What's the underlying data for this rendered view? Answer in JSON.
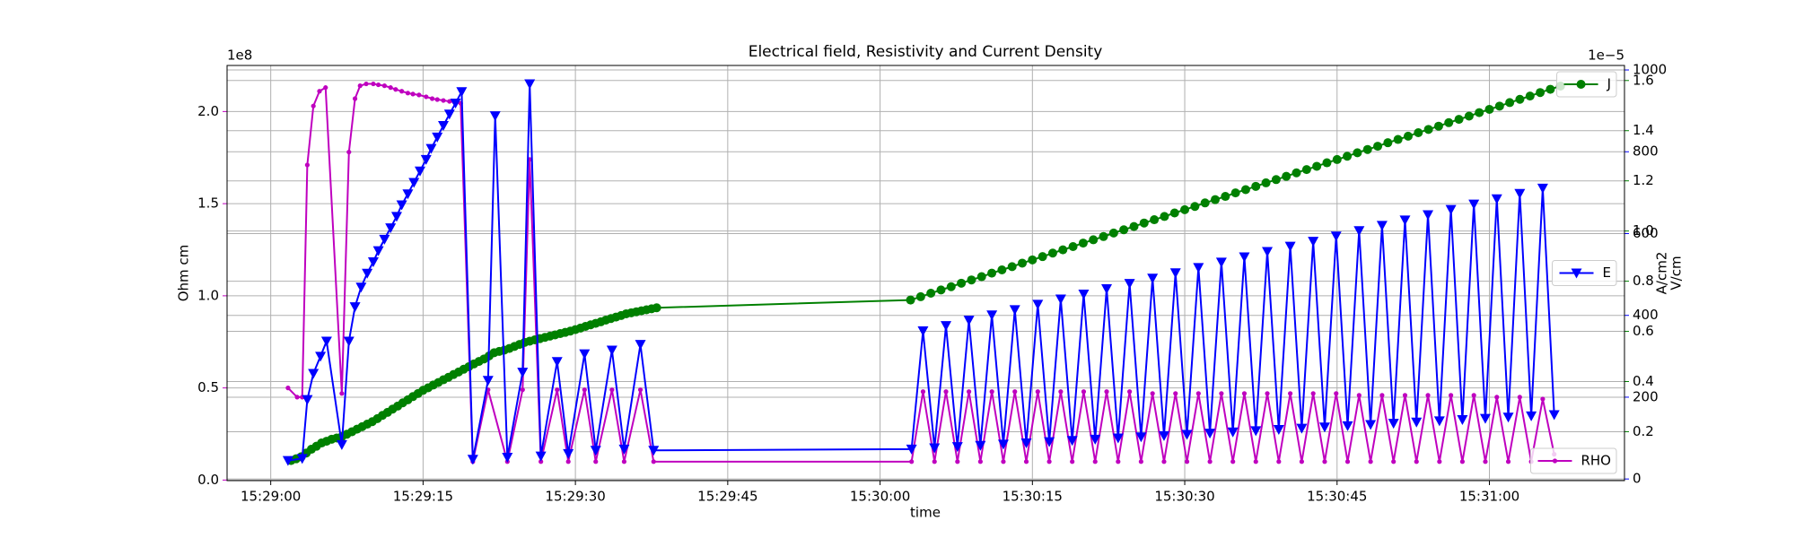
{
  "chart_data": {
    "type": "line",
    "title": "Electrical field, Resistivity and Current Density",
    "xlabel": "time",
    "ylabel": "Ohm cm",
    "y2label": "A/cm2",
    "y3label": "V/cm",
    "y_offset_text": "1e8",
    "y2_offset_text": "1e−5",
    "grid": true,
    "xlim": [
      -4.3,
      133.3
    ],
    "xticks": [
      {
        "value": 0,
        "label": "15:29:00"
      },
      {
        "value": 15,
        "label": "15:29:15"
      },
      {
        "value": 30,
        "label": "15:29:30"
      },
      {
        "value": 45,
        "label": "15:29:45"
      },
      {
        "value": 60,
        "label": "15:30:00"
      },
      {
        "value": 75,
        "label": "15:30:15"
      },
      {
        "value": 90,
        "label": "15:30:30"
      },
      {
        "value": 105,
        "label": "15:30:45"
      },
      {
        "value": 120,
        "label": "15:31:00"
      }
    ],
    "ylim": [
      -0.003,
      2.25
    ],
    "yticks": [
      {
        "value": 0,
        "label": "0.0"
      },
      0.5,
      {
        "value": 1,
        "label": "1.0"
      },
      1.5,
      {
        "value": 2,
        "label": "2.0"
      }
    ],
    "y2lim": [
      0.005,
      1.66
    ],
    "y2ticks": [
      0.2,
      0.4,
      0.6,
      0.8,
      {
        "value": 1,
        "label": "1.0"
      },
      1.2,
      1.4,
      1.6
    ],
    "y3lim": [
      -4,
      1011
    ],
    "y3ticks": [
      0,
      200,
      400,
      600,
      800,
      1000
    ],
    "series": [
      {
        "name": "RHO",
        "color": "#bf00bf",
        "marker": "point",
        "axis": "y",
        "legend": "lower right",
        "x": [
          1.7,
          2.6,
          3.1,
          3.6,
          4.2,
          4.8,
          5.4,
          7.0,
          7.7,
          8.3,
          8.8,
          9.4,
          10.1,
          10.6,
          11.2,
          11.8,
          12.3,
          12.9,
          13.5,
          14.0,
          14.6,
          15.3,
          15.9,
          16.4,
          17.0,
          17.6,
          18.1,
          18.7,
          19.9,
          21.4,
          23.3,
          24.8,
          25.5,
          26.6,
          28.2,
          29.3,
          30.9,
          32.0,
          33.6,
          34.8,
          36.4,
          37.7,
          63.1,
          64.23,
          65.36,
          66.49,
          67.62,
          68.75,
          69.88,
          71.01,
          72.14,
          73.27,
          74.4,
          75.53,
          76.66,
          77.79,
          78.92,
          80.05,
          81.18,
          82.31,
          83.44,
          84.57,
          85.7,
          86.83,
          87.96,
          89.09,
          90.22,
          91.35,
          92.48,
          93.61,
          94.74,
          95.87,
          97.0,
          98.13,
          99.26,
          100.39,
          101.52,
          102.65,
          103.78,
          104.91,
          106.04,
          107.17,
          108.3,
          109.43,
          110.56,
          111.69,
          112.82,
          113.95,
          115.08,
          116.21,
          117.34,
          118.47,
          119.6,
          120.73,
          121.86,
          122.99,
          124.12,
          125.25,
          126.38
        ],
        "values": [
          0.5,
          0.45,
          0.45,
          1.71,
          2.03,
          2.11,
          2.13,
          0.47,
          1.78,
          2.07,
          2.14,
          2.15,
          2.15,
          2.145,
          2.14,
          2.13,
          2.12,
          2.11,
          2.1,
          2.095,
          2.09,
          2.08,
          2.07,
          2.065,
          2.06,
          2.055,
          2.05,
          2.045,
          0.1,
          0.49,
          0.1,
          0.49,
          1.74,
          0.1,
          0.49,
          0.1,
          0.49,
          0.1,
          0.49,
          0.1,
          0.49,
          0.1,
          0.1,
          0.48,
          0.1,
          0.48,
          0.1,
          0.48,
          0.1,
          0.48,
          0.1,
          0.48,
          0.1,
          0.48,
          0.1,
          0.48,
          0.1,
          0.48,
          0.1,
          0.48,
          0.1,
          0.48,
          0.1,
          0.47,
          0.1,
          0.47,
          0.1,
          0.47,
          0.1,
          0.47,
          0.1,
          0.47,
          0.1,
          0.47,
          0.1,
          0.47,
          0.1,
          0.47,
          0.1,
          0.47,
          0.1,
          0.46,
          0.1,
          0.46,
          0.1,
          0.46,
          0.1,
          0.46,
          0.1,
          0.46,
          0.1,
          0.46,
          0.1,
          0.45,
          0.1,
          0.45,
          0.1,
          0.44,
          0.14
        ]
      },
      {
        "name": "J",
        "color": "#008000",
        "marker": "circle",
        "axis": "y2",
        "legend": "upper right",
        "x": [
          2,
          2.5,
          3,
          3.5,
          4,
          4.5,
          5,
          5.5,
          6,
          6.5,
          7,
          7.5,
          8,
          8.5,
          9,
          9.5,
          10,
          10.5,
          11,
          11.5,
          12,
          12.5,
          13,
          13.5,
          14,
          14.5,
          15,
          15.5,
          16,
          16.5,
          17,
          17.5,
          18,
          18.5,
          19,
          19.5,
          20,
          20.5,
          21,
          21.5,
          22,
          22.5,
          23,
          23.5,
          24,
          24.5,
          25,
          25.5,
          26,
          26.5,
          27,
          27.5,
          28,
          28.5,
          29,
          29.5,
          30,
          30.5,
          31,
          31.5,
          32,
          32.5,
          33,
          33.5,
          34,
          34.5,
          35,
          35.5,
          36,
          36.5,
          37,
          37.5,
          38,
          63,
          64,
          65,
          66,
          67,
          68,
          69,
          70,
          71,
          72,
          73,
          74,
          75,
          76,
          77,
          78,
          79,
          80,
          81,
          82,
          83,
          84,
          85,
          86,
          87,
          88,
          89,
          90,
          91,
          92,
          93,
          94,
          95,
          96,
          97,
          98,
          99,
          100,
          101,
          102,
          103,
          104,
          105,
          106,
          107,
          108,
          109,
          110,
          111,
          112,
          113,
          114,
          115,
          116,
          117,
          118,
          119,
          120,
          121,
          122,
          123,
          124,
          125,
          126,
          127
        ],
        "values": [
          0.085,
          0.092,
          0.1,
          0.115,
          0.13,
          0.142,
          0.155,
          0.162,
          0.17,
          0.175,
          0.18,
          0.19,
          0.2,
          0.21,
          0.22,
          0.23,
          0.24,
          0.252,
          0.265,
          0.277,
          0.29,
          0.302,
          0.315,
          0.327,
          0.34,
          0.352,
          0.365,
          0.375,
          0.386,
          0.396,
          0.407,
          0.417,
          0.428,
          0.438,
          0.449,
          0.459,
          0.47,
          0.48,
          0.49,
          0.502,
          0.515,
          0.52,
          0.525,
          0.532,
          0.54,
          0.548,
          0.556,
          0.561,
          0.566,
          0.571,
          0.576,
          0.581,
          0.586,
          0.591,
          0.596,
          0.601,
          0.607,
          0.613,
          0.62,
          0.626,
          0.632,
          0.638,
          0.645,
          0.651,
          0.657,
          0.663,
          0.67,
          0.674,
          0.678,
          0.682,
          0.686,
          0.69,
          0.694,
          0.725,
          0.738,
          0.752,
          0.765,
          0.778,
          0.792,
          0.805,
          0.818,
          0.832,
          0.845,
          0.858,
          0.872,
          0.885,
          0.898,
          0.912,
          0.925,
          0.938,
          0.952,
          0.965,
          0.978,
          0.992,
          1.005,
          1.018,
          1.032,
          1.045,
          1.058,
          1.072,
          1.085,
          1.098,
          1.112,
          1.125,
          1.138,
          1.152,
          1.165,
          1.178,
          1.192,
          1.205,
          1.218,
          1.232,
          1.245,
          1.258,
          1.272,
          1.285,
          1.298,
          1.312,
          1.325,
          1.338,
          1.352,
          1.365,
          1.378,
          1.392,
          1.405,
          1.418,
          1.432,
          1.445,
          1.458,
          1.472,
          1.485,
          1.498,
          1.512,
          1.525,
          1.538,
          1.552,
          1.565,
          1.578
        ]
      },
      {
        "name": "E",
        "color": "#0000ff",
        "marker": "triangle_down",
        "axis": "y3",
        "legend": "center right",
        "x": [
          1.7,
          3.1,
          3.6,
          4.2,
          4.9,
          5.5,
          7.0,
          7.7,
          8.3,
          8.9,
          9.5,
          10.1,
          10.6,
          11.2,
          11.8,
          12.4,
          12.9,
          13.5,
          14.1,
          14.7,
          15.3,
          15.8,
          16.4,
          17.0,
          17.6,
          18.2,
          18.8,
          19.9,
          21.4,
          22.1,
          23.3,
          24.8,
          25.5,
          26.6,
          28.2,
          29.3,
          30.9,
          32.0,
          33.6,
          34.8,
          36.4,
          37.7,
          63.1,
          64.23,
          65.36,
          66.49,
          67.62,
          68.75,
          69.88,
          71.01,
          72.14,
          73.27,
          74.4,
          75.53,
          76.66,
          77.79,
          78.92,
          80.05,
          81.18,
          82.31,
          83.44,
          84.57,
          85.7,
          86.83,
          87.96,
          89.09,
          90.22,
          91.35,
          92.48,
          93.61,
          94.74,
          95.87,
          97.0,
          98.13,
          99.26,
          100.39,
          101.52,
          102.65,
          103.78,
          104.91,
          106.04,
          107.17,
          108.3,
          109.43,
          110.56,
          111.69,
          112.82,
          113.95,
          115.08,
          116.21,
          117.34,
          118.47,
          119.6,
          120.73,
          121.86,
          122.99,
          124.12,
          125.25,
          126.38
        ],
        "values": [
          45,
          50,
          194,
          258,
          300,
          337,
          84,
          337,
          421,
          469,
          503,
          531,
          558,
          586,
          614,
          642,
          670,
          697,
          725,
          753,
          781,
          808,
          836,
          864,
          892,
          919,
          947,
          48,
          241,
          888,
          53,
          261,
          966,
          56,
          287,
          62,
          306,
          70,
          315,
          73,
          329,
          70,
          73,
          362,
          76,
          375,
          79,
          388,
          82,
          401,
          85,
          414,
          88,
          427,
          91,
          440,
          94,
          452,
          97,
          465,
          100,
          478,
          103,
          491,
          106,
          504,
          109,
          517,
          112,
          530,
          115,
          543,
          118,
          556,
          121,
          569,
          124,
          581,
          127,
          594,
          130,
          607,
          133,
          620,
          136,
          633,
          139,
          646,
          142,
          659,
          145,
          672,
          148,
          685,
          151,
          698,
          154,
          711,
          157
        ]
      }
    ]
  }
}
